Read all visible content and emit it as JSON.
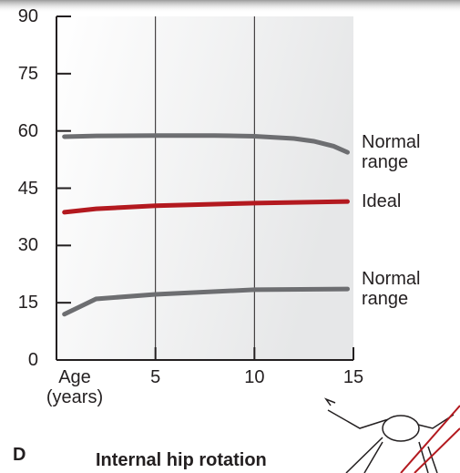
{
  "chart_data": {
    "type": "line",
    "title": "Internal hip rotation",
    "panel_label": "D",
    "xlim": [
      0,
      15
    ],
    "ylim": [
      0,
      90
    ],
    "xticks": [
      {
        "value": 0,
        "label": "Age (years)"
      },
      5,
      10,
      15
    ],
    "yticks": [
      0,
      15,
      30,
      45,
      60,
      75,
      90
    ],
    "grid": true,
    "series": [
      {
        "name": "Normal range",
        "color": "#6d6e71",
        "x": [
          0.4,
          2,
          5,
          8,
          10,
          12,
          13,
          14,
          14.7
        ],
        "values": [
          58.5,
          58.7,
          58.8,
          58.8,
          58.6,
          58,
          57.3,
          56,
          54.4
        ]
      },
      {
        "name": "Ideal",
        "color": "#b3191f",
        "x": [
          0.4,
          2,
          5,
          10,
          14.7
        ],
        "values": [
          38.7,
          39.6,
          40.4,
          41.1,
          41.5
        ]
      },
      {
        "name": "Normal range",
        "color": "#6d6e71",
        "x": [
          0.4,
          2,
          5,
          10,
          14.7
        ],
        "values": [
          12,
          16,
          17.2,
          18.4,
          18.6
        ]
      }
    ]
  }
}
